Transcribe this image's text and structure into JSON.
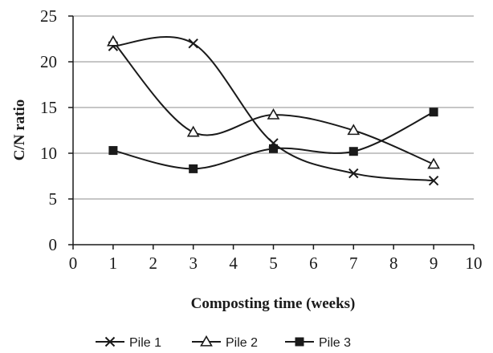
{
  "chart_data": {
    "type": "line",
    "smooth": true,
    "xlabel": "Composting time (weeks)",
    "ylabel": "C/N ratio",
    "xlim": [
      0,
      10
    ],
    "ylim": [
      0,
      25
    ],
    "xticks": [
      "0",
      "1",
      "2",
      "3",
      "4",
      "5",
      "6",
      "7",
      "8",
      "9",
      "10"
    ],
    "yticks": [
      "0",
      "5",
      "10",
      "15",
      "20",
      "25"
    ],
    "grid": "horizontal",
    "legend_position": "bottom",
    "series": [
      {
        "name": "Pile 1",
        "marker": "x",
        "x": [
          1,
          3,
          5,
          7,
          9
        ],
        "y": [
          21.7,
          22.0,
          11.1,
          7.8,
          7.0
        ]
      },
      {
        "name": "Pile 2",
        "marker": "triangle-open",
        "x": [
          1,
          3,
          5,
          7,
          9
        ],
        "y": [
          22.2,
          12.3,
          14.2,
          12.5,
          8.8
        ]
      },
      {
        "name": "Pile 3",
        "marker": "square",
        "x": [
          1,
          3,
          5,
          7,
          9
        ],
        "y": [
          10.3,
          8.3,
          10.5,
          10.2,
          14.5
        ]
      }
    ],
    "colors": {
      "line": "#1a1a1a",
      "grid": "#b3b3b3",
      "background": "#ffffff"
    }
  }
}
